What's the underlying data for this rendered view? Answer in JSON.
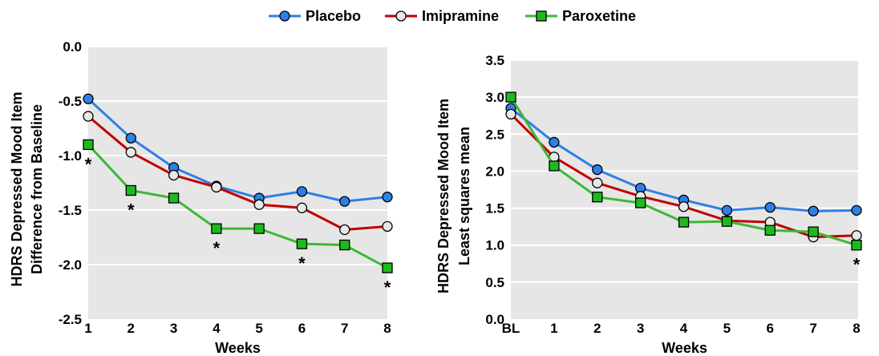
{
  "legend": {
    "entries": [
      {
        "name": "Placebo",
        "color": "#2f7fe6",
        "marker": "circle",
        "marker_fill": "#2f7fe6"
      },
      {
        "name": "Imipramine",
        "color": "#c00000",
        "marker": "circle",
        "marker_fill": "#e8e8e8"
      },
      {
        "name": "Paroxetine",
        "color": "#3db835",
        "marker": "square",
        "marker_fill": "#1fb81f"
      }
    ]
  },
  "chart_data": [
    {
      "type": "line",
      "xlabel": "Weeks",
      "ylabel_lines": [
        "HDRS Depressed Mood Item",
        "Difference from Baseline"
      ],
      "categories": [
        "1",
        "2",
        "3",
        "4",
        "5",
        "6",
        "7",
        "8"
      ],
      "ylim": [
        -2.5,
        0.0
      ],
      "yticks": [
        "0.0",
        "-0.5",
        "-1.0",
        "-1.5",
        "-2.0",
        "-2.5"
      ],
      "ytick_values": [
        0.0,
        -0.5,
        -1.0,
        -1.5,
        -2.0,
        -2.5
      ],
      "grid": true,
      "series": [
        {
          "name": "Placebo",
          "values": [
            -0.48,
            -0.84,
            -1.11,
            -1.28,
            -1.39,
            -1.33,
            -1.42,
            -1.38
          ]
        },
        {
          "name": "Imipramine",
          "values": [
            -0.64,
            -0.97,
            -1.18,
            -1.29,
            -1.45,
            -1.48,
            -1.68,
            -1.65
          ]
        },
        {
          "name": "Paroxetine",
          "values": [
            -0.9,
            -1.32,
            -1.39,
            -1.67,
            -1.67,
            -1.81,
            -1.82,
            -2.03
          ]
        }
      ],
      "annotations": [
        {
          "text": "*",
          "category": "1",
          "value": -0.9
        },
        {
          "text": "*",
          "category": "2",
          "value": -1.32
        },
        {
          "text": "*",
          "category": "4",
          "value": -1.67
        },
        {
          "text": "*",
          "category": "6",
          "value": -1.81
        },
        {
          "text": "*",
          "category": "8",
          "value": -2.03
        }
      ]
    },
    {
      "type": "line",
      "xlabel": "Weeks",
      "ylabel_lines": [
        "HDRS Depressed Mood Item",
        "Least squares mean"
      ],
      "categories": [
        "BL",
        "1",
        "2",
        "3",
        "4",
        "5",
        "6",
        "7",
        "8"
      ],
      "ylim": [
        0.0,
        3.5
      ],
      "yticks": [
        "0.0",
        "0.5",
        "1.0",
        "1.5",
        "2.0",
        "2.5",
        "3.0",
        "3.5"
      ],
      "ytick_values": [
        0.0,
        0.5,
        1.0,
        1.5,
        2.0,
        2.5,
        3.0,
        3.5
      ],
      "grid": true,
      "series": [
        {
          "name": "Placebo",
          "values": [
            2.85,
            2.39,
            2.02,
            1.77,
            1.61,
            1.47,
            1.51,
            1.46,
            1.47
          ]
        },
        {
          "name": "Imipramine",
          "values": [
            2.77,
            2.19,
            1.84,
            1.66,
            1.52,
            1.33,
            1.31,
            1.11,
            1.13
          ]
        },
        {
          "name": "Paroxetine",
          "values": [
            3.0,
            2.07,
            1.65,
            1.57,
            1.31,
            1.32,
            1.2,
            1.18,
            1.0
          ]
        }
      ],
      "annotations": [
        {
          "text": "*",
          "category": "8",
          "value": 1.0
        }
      ]
    }
  ]
}
